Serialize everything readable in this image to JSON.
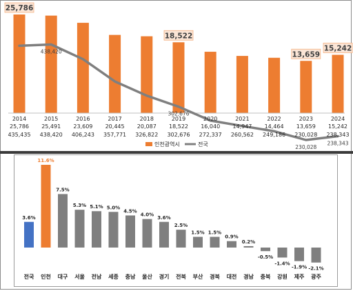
{
  "chart_data": [
    {
      "type": "bar",
      "categories": [
        "2014",
        "2015",
        "2016",
        "2017",
        "2018",
        "2019",
        "2020",
        "2021",
        "2022",
        "2023",
        "2024"
      ],
      "series": [
        {
          "name": "인천광역시",
          "type": "bar",
          "color": "#ed7d31",
          "values": [
            25786,
            25491,
            23609,
            20445,
            20087,
            18522,
            16040,
            14947,
            14464,
            13659,
            15242
          ],
          "value_labels": [
            "25,786",
            "25,491",
            "23,609",
            "20,445",
            "20,087",
            "18,522",
            "16,040",
            "14,947",
            "14,464",
            "13,659",
            "15,242"
          ]
        },
        {
          "name": "전국",
          "type": "line",
          "color": "#7f7f7f",
          "values": [
            435435,
            438420,
            406243,
            357771,
            326822,
            302676,
            272337,
            260562,
            249186,
            230028,
            238343
          ],
          "value_labels": [
            "435,435",
            "438,420",
            "406,243",
            "357,771",
            "326,822",
            "302,676",
            "272,337",
            "260,562",
            "249,186",
            "230,028",
            "238,343"
          ]
        }
      ],
      "highlighted_labels": {
        "bar": [
          {
            "index": 0,
            "text": "25,786"
          },
          {
            "index": 5,
            "text": "18,522"
          },
          {
            "index": 9,
            "text": "13,659"
          },
          {
            "index": 10,
            "text": "15,242"
          }
        ],
        "line": [
          {
            "index": 1,
            "text": "438,420"
          },
          {
            "index": 5,
            "text": "302,676"
          },
          {
            "index": 9,
            "text": "230,028"
          },
          {
            "index": 10,
            "text": "238,343"
          }
        ]
      },
      "legend_position": "bottom"
    },
    {
      "type": "bar",
      "categories": [
        "전국",
        "인천",
        "대구",
        "서울",
        "전남",
        "세종",
        "충남",
        "울산",
        "경기",
        "전북",
        "부산",
        "경북",
        "대전",
        "경남",
        "충북",
        "강원",
        "제주",
        "광주"
      ],
      "values": [
        3.6,
        11.6,
        7.5,
        5.3,
        5.1,
        5.0,
        4.5,
        4.0,
        3.6,
        2.5,
        1.5,
        1.5,
        0.9,
        0.2,
        -0.5,
        -1.4,
        -1.9,
        -2.1
      ],
      "value_labels": [
        "3.6%",
        "11.6%",
        "7.5%",
        "5.3%",
        "5.1%",
        "5.0%",
        "4.5%",
        "4.0%",
        "3.6%",
        "2.5%",
        "1.5%",
        "1.5%",
        "0.9%",
        "0.2%",
        "-0.5%",
        "-1.4%",
        "-1.9%",
        "-2.1%"
      ],
      "colors": {
        "default": "#7f7f7f",
        "전국": "#4472c4",
        "인천": "#ed7d31"
      }
    }
  ]
}
